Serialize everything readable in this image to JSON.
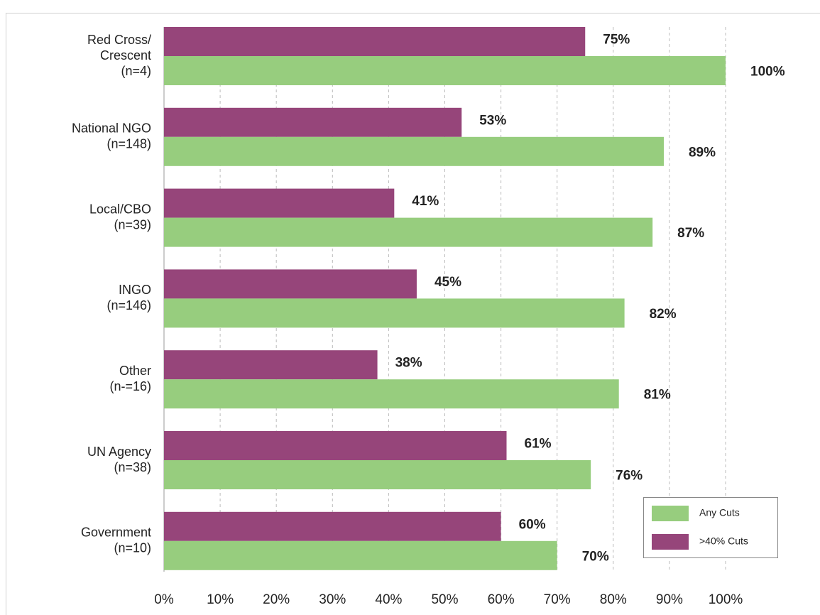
{
  "chart_data": {
    "type": "bar",
    "orientation": "horizontal",
    "categories": [
      [
        "Red Cross/",
        "Crescent",
        "(n=4)"
      ],
      [
        "National NGO",
        "(n=148)"
      ],
      [
        "Local/CBO",
        "(n=39)"
      ],
      [
        "INGO",
        "(n=146)"
      ],
      [
        "Other",
        "(n-=16)"
      ],
      [
        "UN Agency",
        "(n=38)"
      ],
      [
        "Government",
        "(n=10)"
      ]
    ],
    "series": [
      {
        "name": "Any Cuts",
        "color": "#97cd7e",
        "values": [
          100,
          89,
          87,
          82,
          81,
          76,
          70
        ],
        "value_labels": [
          "100%",
          "89%",
          "87%",
          "82%",
          "81%",
          "76%",
          "70%"
        ]
      },
      {
        "name": ">40% Cuts",
        "color": "#96457a",
        "values": [
          75,
          53,
          41,
          45,
          38,
          61,
          60
        ],
        "value_labels": [
          "75%",
          "53%",
          "41%",
          "45%",
          "38%",
          "61%",
          "60%"
        ]
      }
    ],
    "xlim": [
      0,
      100
    ],
    "xticks": [
      {
        "value": 0,
        "label": "0%"
      },
      {
        "value": 10,
        "label": "10%"
      },
      {
        "value": 20,
        "label": "20%"
      },
      {
        "value": 30,
        "label": "30%"
      },
      {
        "value": 40,
        "label": "40%"
      },
      {
        "value": 50,
        "label": "50%"
      },
      {
        "value": 60,
        "label": "60%"
      },
      {
        "value": 70,
        "label": "70%"
      },
      {
        "value": 80,
        "label": "80%"
      },
      {
        "value": 90,
        "label": "90%"
      },
      {
        "value": 100,
        "label": "100%"
      }
    ],
    "grid": true,
    "legend": "lower right"
  }
}
